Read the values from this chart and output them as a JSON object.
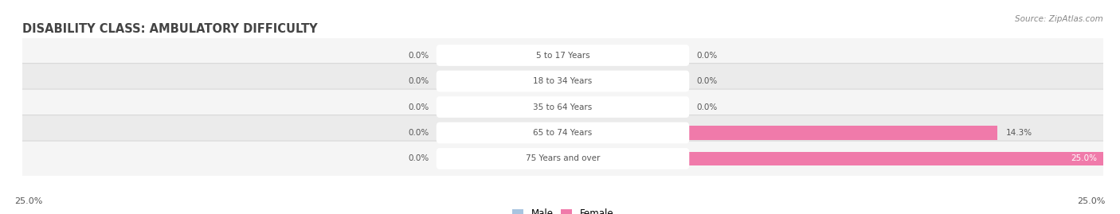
{
  "title": "DISABILITY CLASS: AMBULATORY DIFFICULTY",
  "source": "Source: ZipAtlas.com",
  "categories": [
    "5 to 17 Years",
    "18 to 34 Years",
    "35 to 64 Years",
    "65 to 74 Years",
    "75 Years and over"
  ],
  "male_values": [
    0.0,
    0.0,
    0.0,
    0.0,
    0.0
  ],
  "female_values": [
    0.0,
    0.0,
    0.0,
    14.3,
    25.0
  ],
  "male_color": "#a8c4e0",
  "female_color": "#f07aaa",
  "axis_max": 25.0,
  "label_color": "#555555",
  "title_fontsize": 10.5,
  "tick_label_left": "25.0%",
  "tick_label_right": "25.0%",
  "bg_color": "#ffffff",
  "row_bg_light": "#f5f5f5",
  "row_bg_dark": "#ebebeb",
  "row_border_color": "#d8d8d8"
}
